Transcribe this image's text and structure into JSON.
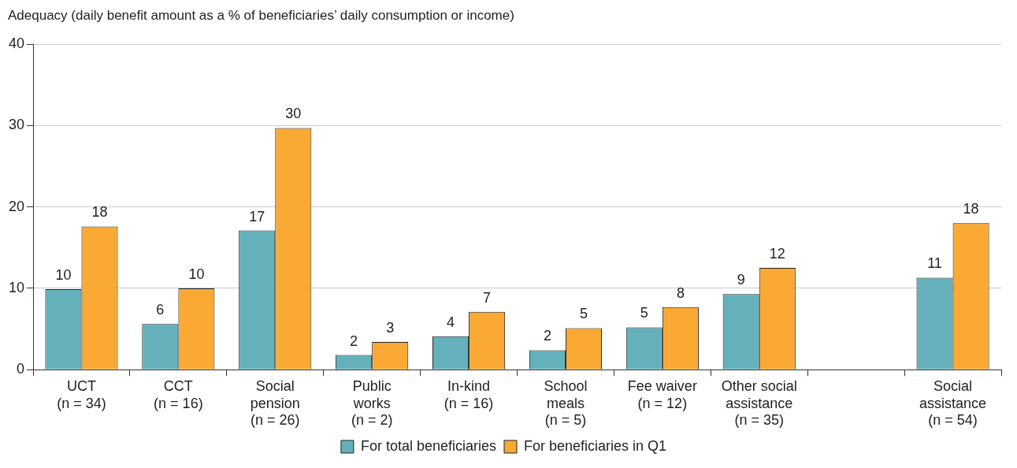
{
  "chart_data": {
    "type": "bar",
    "ylabel": "Adequacy (daily benefit amount as a % of beneficiaries’ daily consumption or income)",
    "categories": [
      "UCT\n(n = 34)",
      "CCT\n(n = 16)",
      "Social\npension\n(n = 26)",
      "Public\nworks\n(n = 2)",
      "In-kind\n(n = 16)",
      "School\nmeals\n(n = 5)",
      "Fee waiver\n(n = 12)",
      "Other social\nassistance\n(n = 35)",
      null,
      "Social\nassistance\n(n = 54)"
    ],
    "series": [
      {
        "name": "For total beneficiaries",
        "color": "#64b1bc",
        "values": [
          9.9,
          5.6,
          17.1,
          1.8,
          4.1,
          2.4,
          5.2,
          9.3,
          null,
          11.3
        ],
        "value_labels": [
          "10",
          "6",
          "17",
          "2",
          "4",
          "2",
          "5",
          "9",
          null,
          "11"
        ]
      },
      {
        "name": "For beneficiaries in Q1",
        "color": "#f9a934",
        "values": [
          17.6,
          10.0,
          29.7,
          3.4,
          7.1,
          5.1,
          7.7,
          12.5,
          null,
          18.0
        ],
        "value_labels": [
          "18",
          "10",
          "30",
          "3",
          "7",
          "5",
          "8",
          "12",
          null,
          "18"
        ]
      }
    ],
    "ylim": [
      0,
      40
    ],
    "yticks": [
      0,
      10,
      20,
      30,
      40
    ],
    "grid": "y",
    "legend": "bottom"
  }
}
